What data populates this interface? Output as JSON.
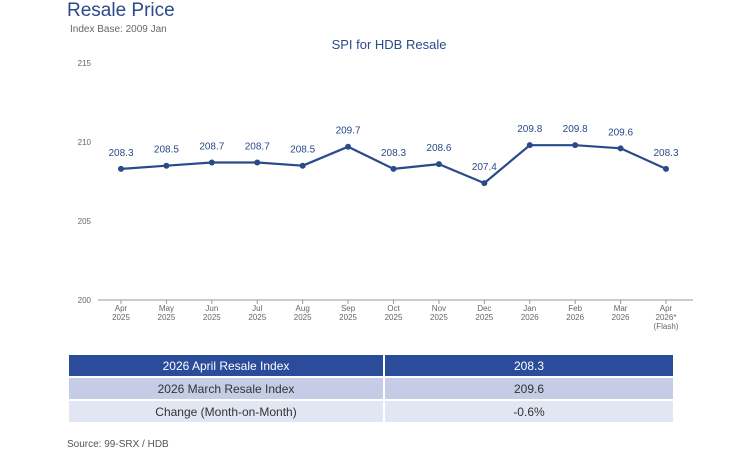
{
  "header": {
    "title": "Resale Price",
    "subtitle": "Index Base: 2009 Jan"
  },
  "chart_data": {
    "type": "line",
    "title": "SPI for HDB Resale",
    "xlabel": "",
    "ylabel": "",
    "ylim": [
      200,
      215
    ],
    "yticks": [
      200,
      205,
      210,
      215
    ],
    "grid": false,
    "categories": [
      [
        "Apr",
        "2025"
      ],
      [
        "May",
        "2025"
      ],
      [
        "Jun",
        "2025"
      ],
      [
        "Jul",
        "2025"
      ],
      [
        "Aug",
        "2025"
      ],
      [
        "Sep",
        "2025"
      ],
      [
        "Oct",
        "2025"
      ],
      [
        "Nov",
        "2025"
      ],
      [
        "Dec",
        "2025"
      ],
      [
        "Jan",
        "2026"
      ],
      [
        "Feb",
        "2026"
      ],
      [
        "Mar",
        "2026"
      ],
      [
        "Apr",
        "2026*",
        "(Flash)"
      ]
    ],
    "values": [
      208.3,
      208.5,
      208.7,
      208.7,
      208.5,
      209.7,
      208.3,
      208.6,
      207.4,
      209.8,
      209.8,
      209.6,
      208.3
    ],
    "line_color": "#2a4a8a"
  },
  "summary": [
    {
      "label": "2026 April Resale Index",
      "value": "208.3"
    },
    {
      "label": "2026 March Resale Index",
      "value": "209.6"
    },
    {
      "label": "Change (Month-on-Month)",
      "value": "-0.6%"
    }
  ],
  "source": "Source: 99-SRX / HDB"
}
